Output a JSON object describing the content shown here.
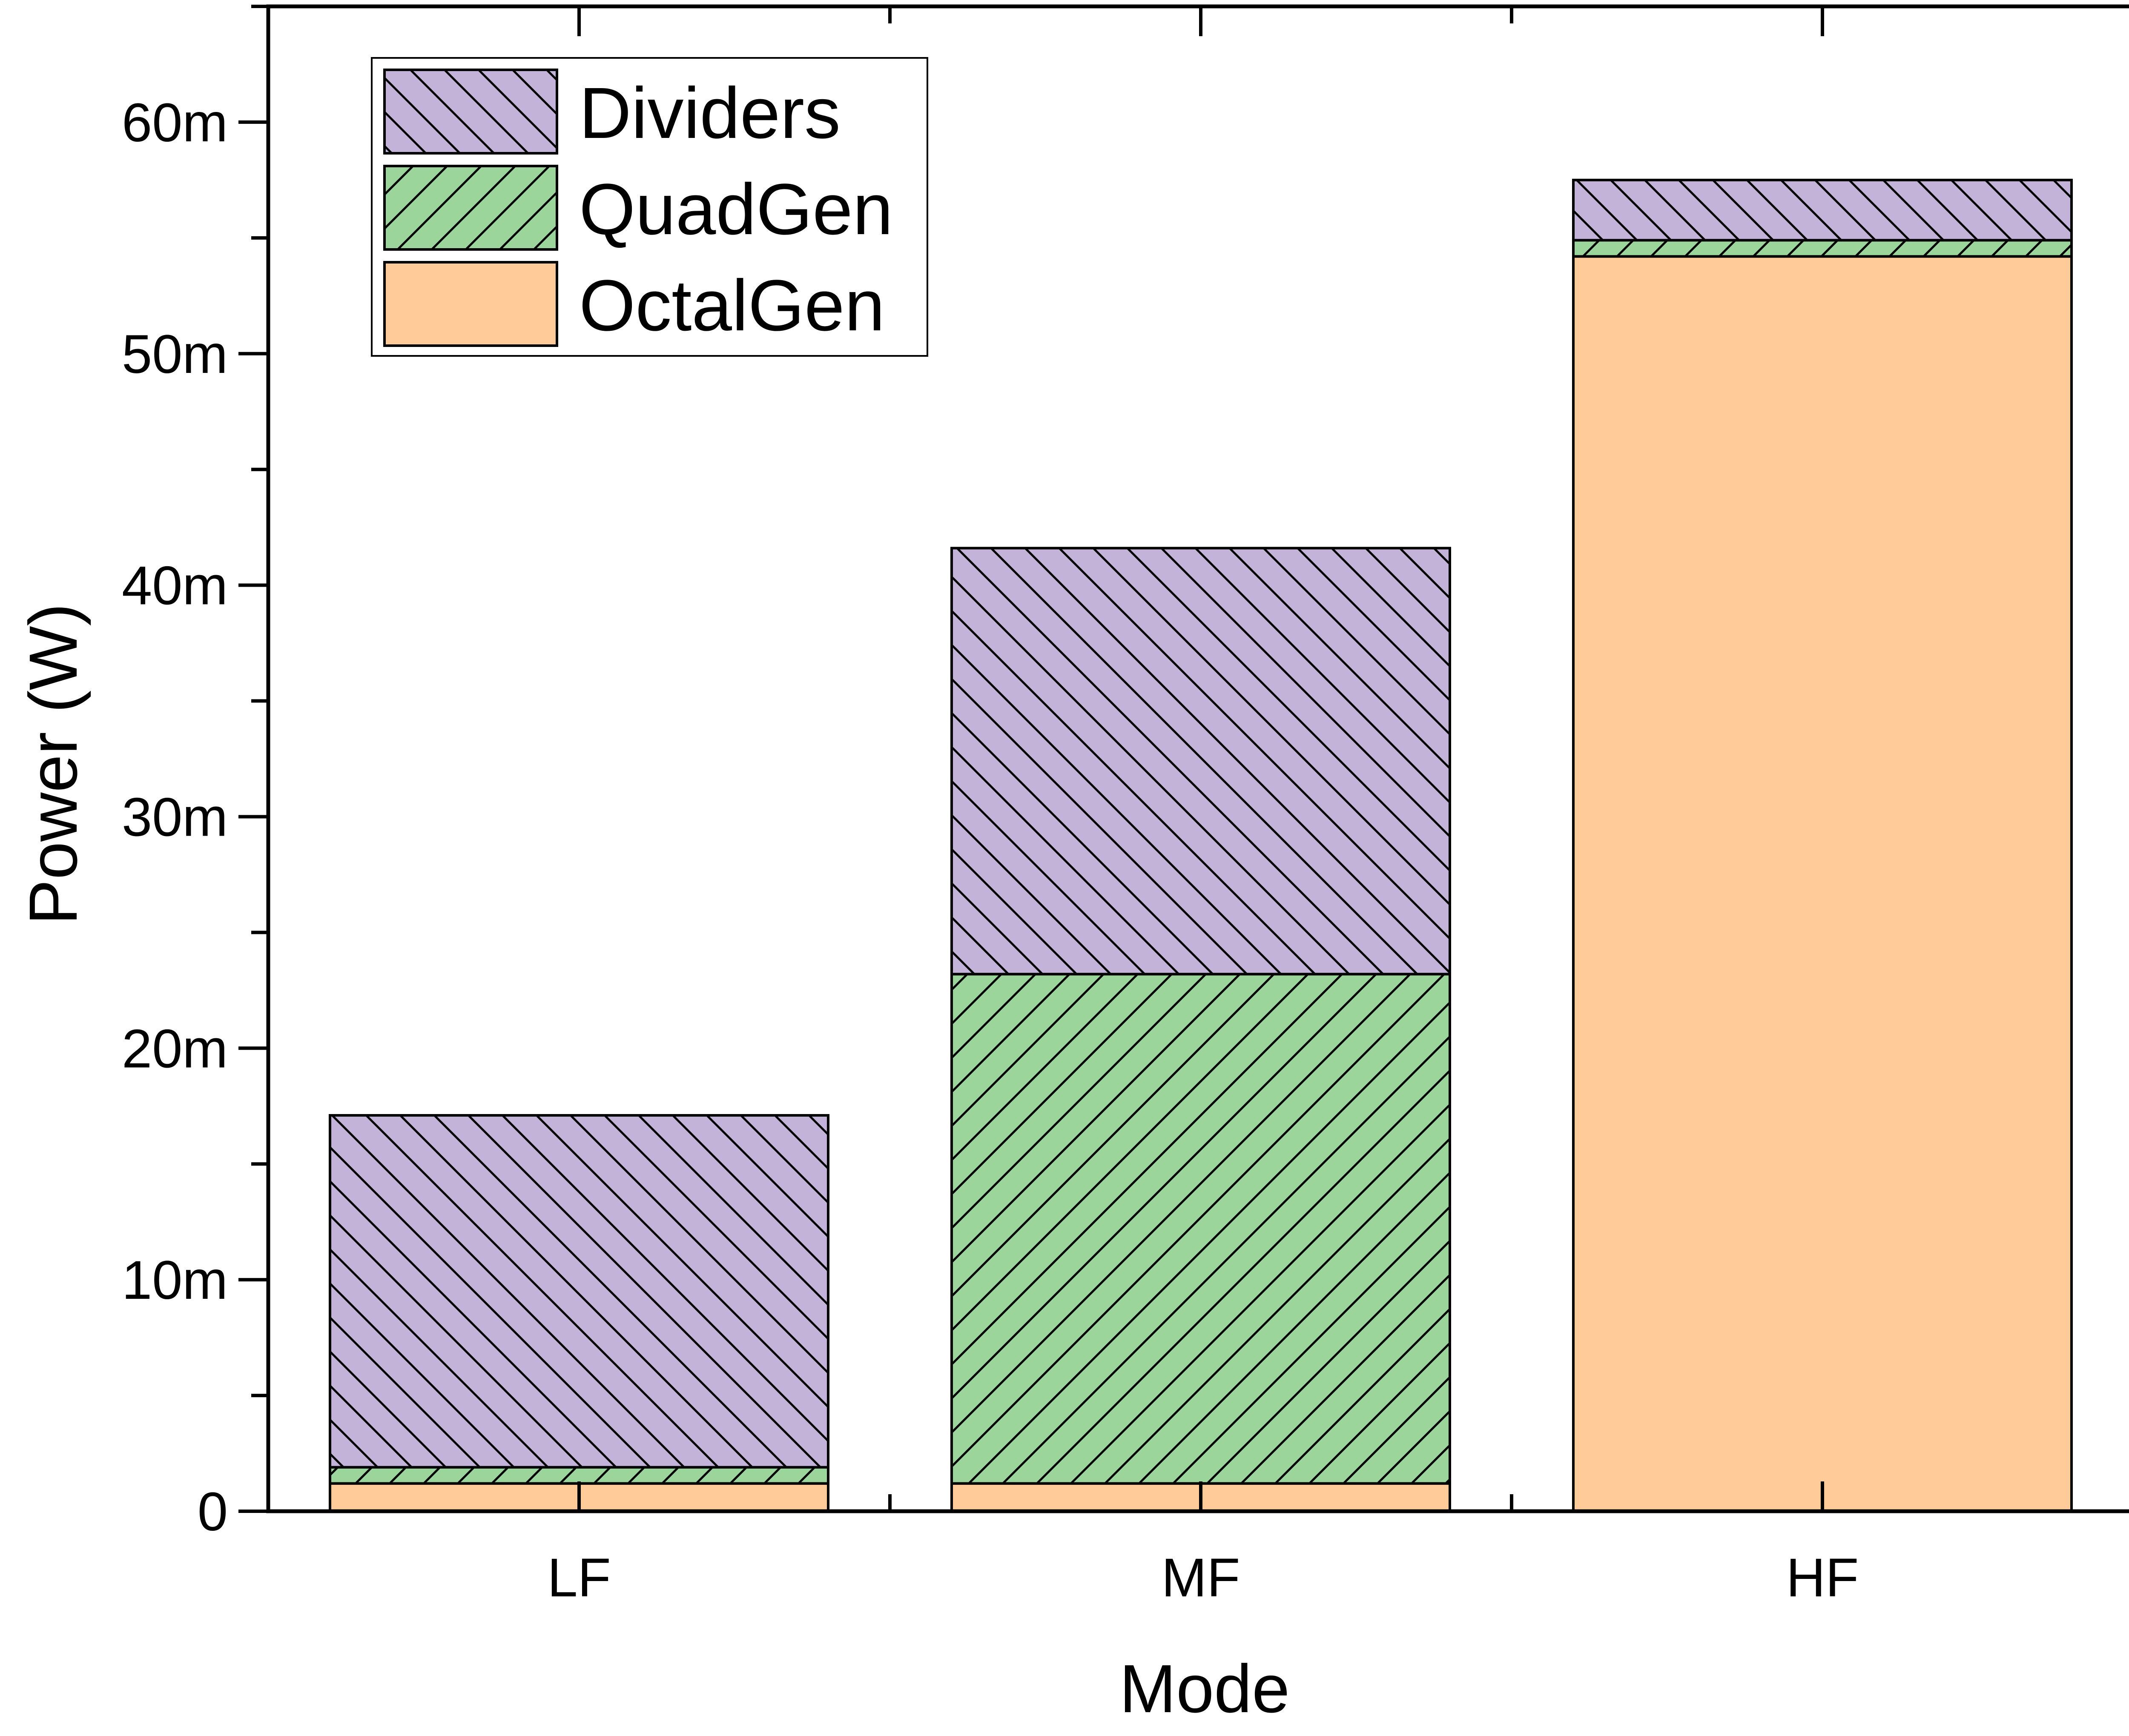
{
  "chart_data": {
    "type": "bar",
    "stacked": true,
    "categories": [
      "LF",
      "MF",
      "HF"
    ],
    "series": [
      {
        "name": "OctalGen",
        "values": [
          1.2,
          1.2,
          54.2
        ],
        "color": "#FFCC99",
        "hatch": "none"
      },
      {
        "name": "QuadGen",
        "values": [
          0.7,
          22.0,
          0.7
        ],
        "color": "#9BD59B",
        "hatch": "forward"
      },
      {
        "name": "Dividers",
        "values": [
          15.2,
          18.4,
          2.6
        ],
        "color": "#C3B3D8",
        "hatch": "backward"
      }
    ],
    "title": "",
    "xlabel": "Mode",
    "ylabel": "Power (W)",
    "ylim": [
      0,
      65
    ],
    "yticks": [
      0,
      10,
      20,
      30,
      40,
      50,
      60
    ],
    "ytick_labels": [
      "0",
      "10m",
      "20m",
      "30m",
      "40m",
      "50m",
      "60m"
    ],
    "grid": false,
    "legend_position": "top-left",
    "legend_order": [
      "Dividers",
      "QuadGen",
      "OctalGen"
    ]
  }
}
